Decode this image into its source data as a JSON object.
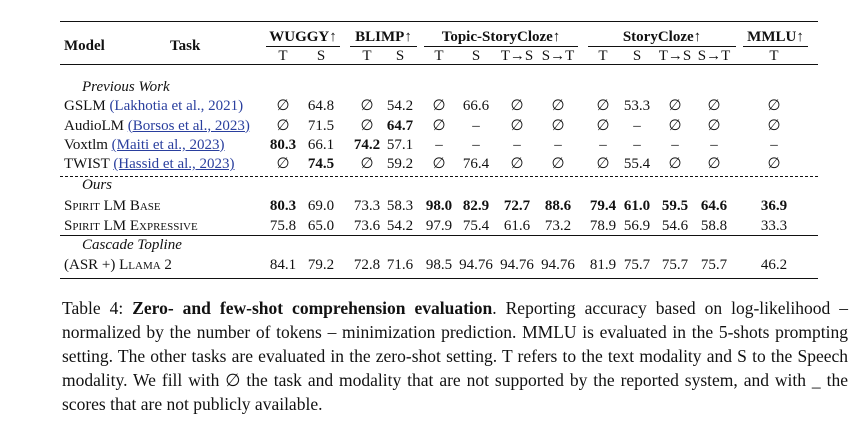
{
  "table": {
    "header": {
      "model": "Model",
      "task": "Task",
      "groups": [
        {
          "name": "WUGGY↑",
          "columns": [
            "T",
            "S"
          ]
        },
        {
          "name": "BLIMP↑",
          "columns": [
            "T",
            "S"
          ]
        },
        {
          "name": "Topic-StoryCloze↑",
          "columns": [
            "T",
            "S",
            "T→S",
            "S→T"
          ]
        },
        {
          "name": "StoryCloze↑",
          "columns": [
            "T",
            "S",
            "T→S",
            "S→T"
          ]
        },
        {
          "name": "MMLU↑",
          "columns": [
            "T"
          ]
        }
      ]
    },
    "sections": [
      {
        "title": "Previous Work",
        "rows": [
          {
            "model": "GSLM",
            "citation": "(Lakhotia et al., 2021)",
            "underlined": false,
            "cells": [
              "∅",
              "64.8",
              "∅",
              "54.2",
              "∅",
              "66.6",
              "∅",
              "∅",
              "∅",
              "53.3",
              "∅",
              "∅",
              "∅"
            ],
            "bold": []
          },
          {
            "model": "AudioLM",
            "citation": "(Borsos et al., 2023)",
            "underlined": true,
            "cells": [
              "∅",
              "71.5",
              "∅",
              "64.7",
              "∅",
              "–",
              "∅",
              "∅",
              "∅",
              "–",
              "∅",
              "∅",
              "∅"
            ],
            "bold": [
              3
            ]
          },
          {
            "model": "Voxtlm",
            "citation": "(Maiti et al., 2023)",
            "underlined": true,
            "cells": [
              "80.3",
              "66.1",
              "74.2",
              "57.1",
              "–",
              "–",
              "–",
              "–",
              "–",
              "–",
              "–",
              "–",
              "–"
            ],
            "bold": [
              0,
              2
            ]
          },
          {
            "model": "TWIST",
            "citation": "(Hassid et al., 2023)",
            "underlined": true,
            "cells": [
              "∅",
              "74.5",
              "∅",
              "59.2",
              "∅",
              "76.4",
              "∅",
              "∅",
              "∅",
              "55.4",
              "∅",
              "∅",
              "∅"
            ],
            "bold": [
              1
            ]
          }
        ]
      },
      {
        "title": "Ours",
        "rows": [
          {
            "model": "Spirit LM Base",
            "cells": [
              "80.3",
              "69.0",
              "73.3",
              "58.3",
              "98.0",
              "82.9",
              "72.7",
              "88.6",
              "79.4",
              "61.0",
              "59.5",
              "64.6",
              "36.9"
            ],
            "bold": [
              0,
              4,
              5,
              6,
              7,
              8,
              9,
              10,
              11,
              12
            ]
          },
          {
            "model": "Spirit LM Expressive",
            "cells": [
              "75.8",
              "65.0",
              "73.6",
              "54.2",
              "97.9",
              "75.4",
              "61.6",
              "73.2",
              "78.9",
              "56.9",
              "54.6",
              "58.8",
              "33.3"
            ],
            "bold": []
          }
        ]
      },
      {
        "title": "Cascade Topline",
        "rows": [
          {
            "model": "(ASR +) Llama 2",
            "cells": [
              "84.1",
              "79.2",
              "72.8",
              "71.6",
              "98.5",
              "94.76",
              "94.76",
              "94.76",
              "81.9",
              "75.7",
              "75.7",
              "75.7",
              "46.2"
            ],
            "bold": []
          }
        ]
      }
    ]
  },
  "caption": {
    "label": "Table 4:",
    "title": "Zero- and few-shot comprehension evaluation",
    "text": ". Reporting accuracy based on log-likelihood – normalized by the number of tokens – minimization prediction. MMLU is evaluated in the 5-shots prompting setting. The other tasks are evaluated in the zero-shot setting. T refers to the text modality and S to the Speech modality. We fill with ∅ the task and modality that are not supported by the reported system, and with _ the scores that are not publicly available."
  }
}
